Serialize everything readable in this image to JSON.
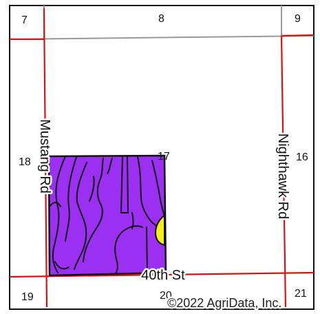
{
  "sections": {
    "s7": "7",
    "s8": "8",
    "s9": "9",
    "s16": "16",
    "s17": "17",
    "s18": "18",
    "s19": "19",
    "s20": "20",
    "s21": "21"
  },
  "roads": {
    "west": "Mustang Rd",
    "east": "Nighthawk Rd",
    "south": "40th St"
  },
  "copyright": "©2022 AgriData, Inc.",
  "colors": {
    "field_fill": "#9b2ff2",
    "soil_inclusion": "#f3ee17",
    "road_line": "#e01010",
    "section_line": "#999999",
    "border": "#111111"
  }
}
